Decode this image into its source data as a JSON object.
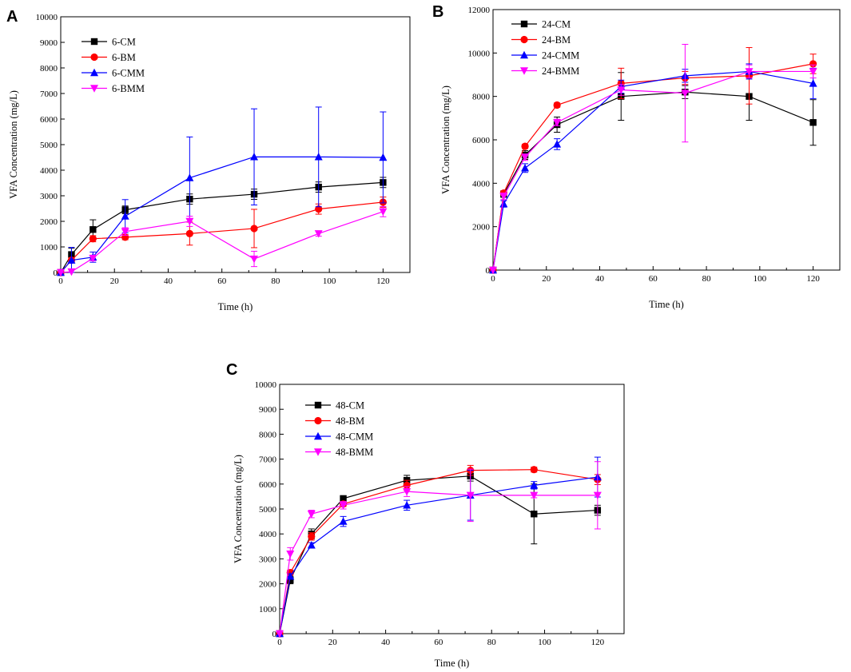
{
  "chart_data": [
    {
      "panel": "A",
      "type": "line",
      "xlabel": "Time (h)",
      "ylabel": "VFA Concentration (mg/L)",
      "xlim": [
        0,
        130
      ],
      "ylim": [
        0,
        10000
      ],
      "xticks": [
        0,
        20,
        40,
        60,
        80,
        100,
        120
      ],
      "yticks": [
        0,
        1000,
        2000,
        3000,
        4000,
        5000,
        6000,
        7000,
        8000,
        9000,
        10000
      ],
      "legend_position": "top-left",
      "x": [
        0,
        4,
        12,
        24,
        48,
        72,
        96,
        120
      ],
      "series": [
        {
          "name": "6-CM",
          "color": "#000000",
          "marker": "square",
          "values": [
            0,
            700,
            1680,
            2450,
            2870,
            3060,
            3340,
            3520
          ],
          "errors": [
            0,
            250,
            380,
            150,
            200,
            200,
            200,
            200
          ]
        },
        {
          "name": "6-BM",
          "color": "#ff0000",
          "marker": "circle",
          "values": [
            0,
            480,
            1320,
            1380,
            1520,
            1720,
            2480,
            2750
          ],
          "errors": [
            0,
            100,
            120,
            100,
            450,
            750,
            200,
            200
          ]
        },
        {
          "name": "6-CMM",
          "color": "#0000ff",
          "marker": "triangle-up",
          "values": [
            0,
            480,
            600,
            2200,
            3700,
            4520,
            4520,
            4500
          ],
          "errors": [
            0,
            500,
            200,
            650,
            1600,
            1880,
            1950,
            1780
          ]
        },
        {
          "name": "6-BMM",
          "color": "#ff00ff",
          "marker": "triangle-down",
          "values": [
            0,
            30,
            560,
            1600,
            2000,
            530,
            1520,
            2380
          ],
          "errors": [
            0,
            0,
            100,
            150,
            200,
            300,
            100,
            200
          ]
        }
      ]
    },
    {
      "panel": "B",
      "type": "line",
      "xlabel": "Time (h)",
      "ylabel": "VFA Concentration (mg/L)",
      "xlim": [
        0,
        130
      ],
      "ylim": [
        0,
        12000
      ],
      "xticks": [
        0,
        20,
        40,
        60,
        80,
        100,
        120
      ],
      "yticks": [
        0,
        2000,
        4000,
        6000,
        8000,
        10000,
        12000
      ],
      "legend_position": "top-left",
      "x": [
        0,
        4,
        12,
        24,
        48,
        72,
        96,
        120
      ],
      "series": [
        {
          "name": "24-CM",
          "color": "#000000",
          "marker": "square",
          "values": [
            0,
            3500,
            5300,
            6700,
            8000,
            8200,
            8000,
            6800
          ],
          "errors": [
            0,
            150,
            200,
            350,
            1100,
            300,
            1100,
            1050
          ]
        },
        {
          "name": "24-BM",
          "color": "#ff0000",
          "marker": "circle",
          "values": [
            0,
            3550,
            5700,
            7600,
            8600,
            8850,
            8950,
            9500
          ],
          "errors": [
            0,
            100,
            100,
            100,
            700,
            300,
            1300,
            450
          ]
        },
        {
          "name": "24-CMM",
          "color": "#0000ff",
          "marker": "triangle-up",
          "values": [
            0,
            3050,
            4700,
            5800,
            8450,
            8950,
            9150,
            8600
          ],
          "errors": [
            0,
            150,
            200,
            250,
            300,
            300,
            350,
            700
          ]
        },
        {
          "name": "24-BMM",
          "color": "#ff00ff",
          "marker": "triangle-down",
          "values": [
            0,
            3400,
            5200,
            6800,
            8300,
            8150,
            9150,
            9150
          ],
          "errors": [
            0,
            150,
            150,
            150,
            250,
            2250,
            300,
            300
          ]
        }
      ]
    },
    {
      "panel": "C",
      "type": "line",
      "xlabel": "Time (h)",
      "ylabel": "VFA Concentration (mg/L)",
      "xlim": [
        0,
        130
      ],
      "ylim": [
        0,
        10000
      ],
      "xticks": [
        0,
        20,
        40,
        60,
        80,
        100,
        120
      ],
      "yticks": [
        0,
        1000,
        2000,
        3000,
        4000,
        5000,
        6000,
        7000,
        8000,
        9000,
        10000
      ],
      "legend_position": "top-left",
      "x": [
        0,
        4,
        12,
        24,
        48,
        72,
        96,
        120
      ],
      "series": [
        {
          "name": "48-CM",
          "color": "#000000",
          "marker": "square",
          "values": [
            0,
            2150,
            4000,
            5420,
            6150,
            6320,
            4800,
            4950
          ],
          "errors": [
            0,
            150,
            200,
            100,
            200,
            200,
            1200,
            200
          ]
        },
        {
          "name": "48-BM",
          "color": "#ff0000",
          "marker": "circle",
          "values": [
            0,
            2450,
            3900,
            5200,
            5950,
            6550,
            6580,
            6180
          ],
          "errors": [
            0,
            100,
            150,
            100,
            200,
            200,
            100,
            200
          ]
        },
        {
          "name": "48-CMM",
          "color": "#0000ff",
          "marker": "triangle-up",
          "values": [
            0,
            2300,
            3550,
            4500,
            5150,
            5550,
            5950,
            6280
          ],
          "errors": [
            0,
            100,
            100,
            200,
            200,
            1000,
            150,
            800
          ]
        },
        {
          "name": "48-BMM",
          "color": "#ff00ff",
          "marker": "triangle-down",
          "values": [
            0,
            3200,
            4800,
            5150,
            5700,
            5550,
            5550,
            5550
          ],
          "errors": [
            0,
            250,
            150,
            150,
            200,
            1050,
            100,
            1350
          ]
        }
      ]
    }
  ]
}
